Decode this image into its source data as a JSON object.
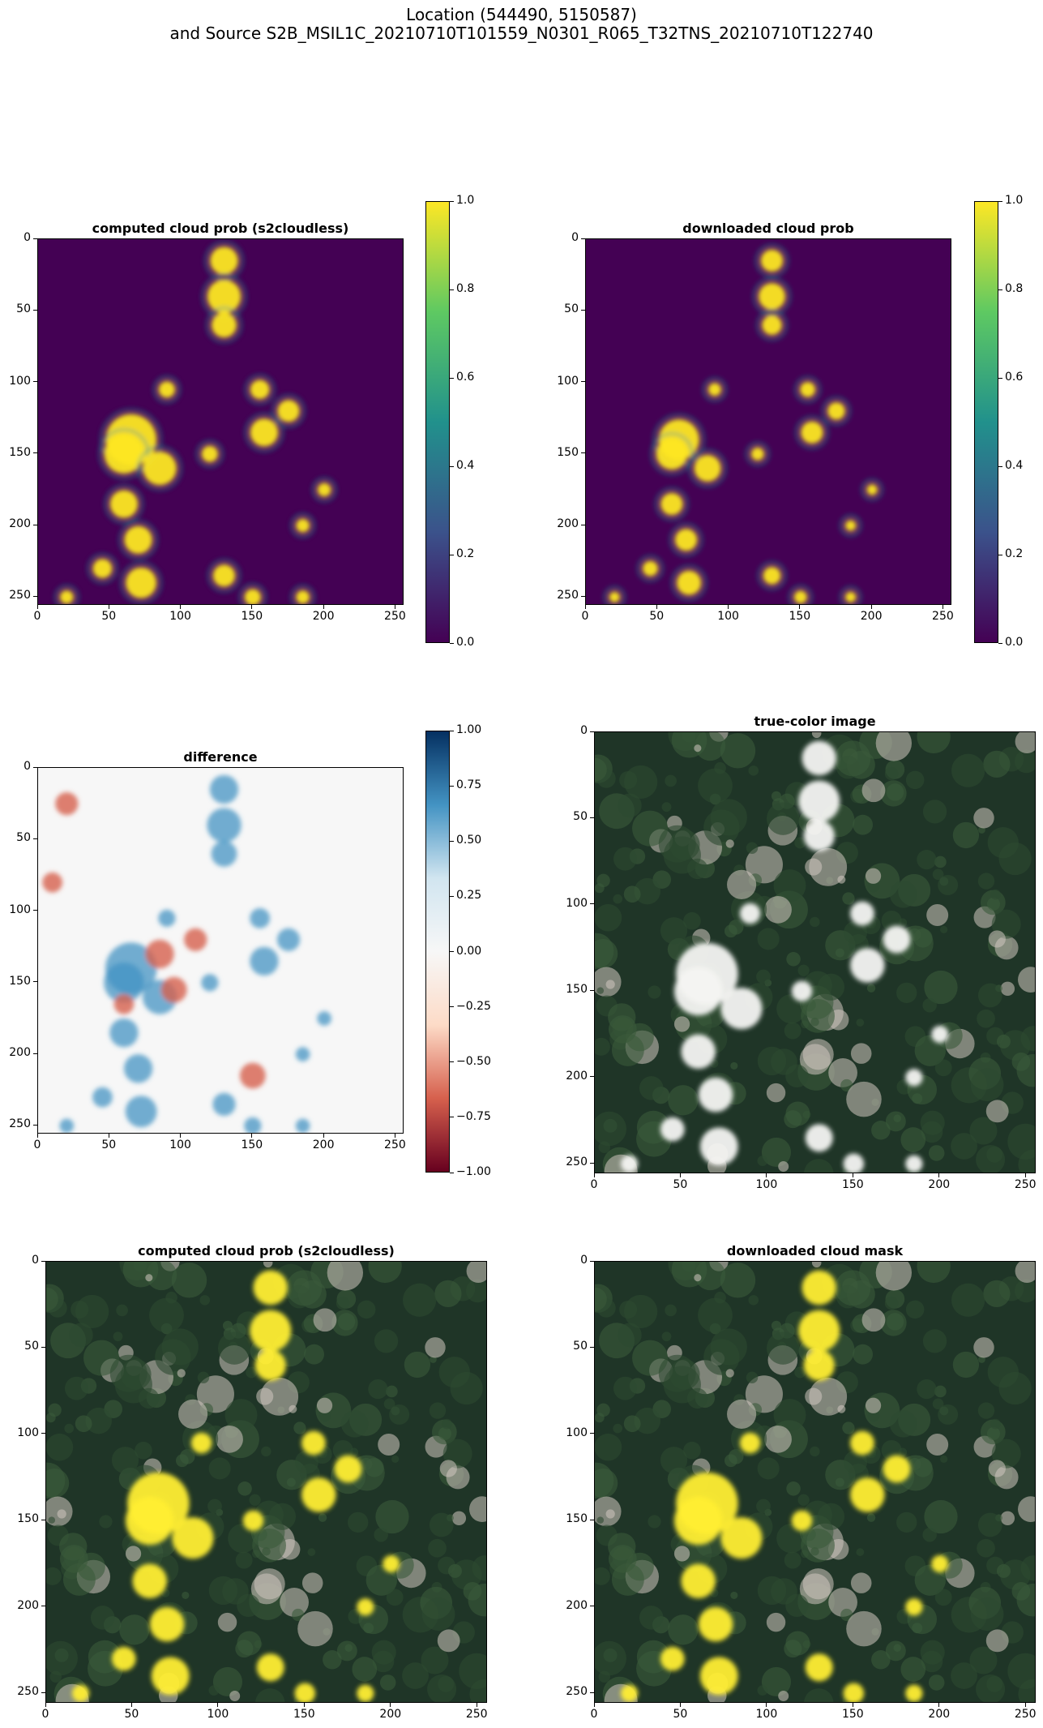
{
  "figure": {
    "title_line1": "Location (544490, 5150587)",
    "title_line2": "and Source S2B_MSIL1C_20210710T101559_N0301_R065_T32TNS_20210710T122740"
  },
  "colors": {
    "viridis": [
      "#440154",
      "#3b528b",
      "#21918c",
      "#5ec962",
      "#fde725"
    ],
    "rdbu": [
      "#67001f",
      "#d6604d",
      "#fddbc7",
      "#f7f7f7",
      "#d1e5f0",
      "#4393c3",
      "#053061"
    ],
    "cloud_overlay": "#ffee33",
    "terrain_dark": "#1f3527",
    "terrain_light": "#cfc7bf"
  },
  "chart_data": [
    {
      "type": "heatmap",
      "title": "computed cloud prob (s2cloudless)",
      "xlim": [
        0,
        256
      ],
      "ylim": [
        256,
        0
      ],
      "x_ticks": [
        0,
        50,
        100,
        150,
        200,
        250
      ],
      "y_ticks": [
        0,
        50,
        100,
        150,
        200,
        250
      ],
      "colormap": "viridis",
      "colorbar": {
        "range": [
          0.0,
          1.0
        ],
        "ticks": [
          "0.0",
          "0.2",
          "0.4",
          "0.6",
          "0.8",
          "1.0"
        ]
      }
    },
    {
      "type": "heatmap",
      "title": "downloaded cloud prob",
      "xlim": [
        0,
        256
      ],
      "ylim": [
        256,
        0
      ],
      "x_ticks": [
        0,
        50,
        100,
        150,
        200,
        250
      ],
      "y_ticks": [
        0,
        50,
        100,
        150,
        200,
        250
      ],
      "colormap": "viridis",
      "colorbar": {
        "range": [
          0.0,
          1.0
        ],
        "ticks": [
          "0.0",
          "0.2",
          "0.4",
          "0.6",
          "0.8",
          "1.0"
        ]
      }
    },
    {
      "type": "heatmap",
      "title": "difference",
      "xlim": [
        0,
        256
      ],
      "ylim": [
        256,
        0
      ],
      "x_ticks": [
        0,
        50,
        100,
        150,
        200,
        250
      ],
      "y_ticks": [
        0,
        50,
        100,
        150,
        200,
        250
      ],
      "colormap": "RdBu",
      "colorbar": {
        "range": [
          -1.0,
          1.0
        ],
        "ticks": [
          "−1.00",
          "−0.75",
          "−0.50",
          "−0.25",
          "0.00",
          "0.25",
          "0.50",
          "0.75",
          "1.00"
        ]
      }
    },
    {
      "type": "heatmap",
      "title": "true-color image",
      "xlim": [
        0,
        256
      ],
      "ylim": [
        256,
        0
      ],
      "x_ticks": [
        0,
        50,
        100,
        150,
        200,
        250
      ],
      "y_ticks": [
        0,
        50,
        100,
        150,
        200,
        250
      ]
    },
    {
      "type": "heatmap",
      "title": "computed cloud prob (s2cloudless)",
      "xlim": [
        0,
        256
      ],
      "ylim": [
        256,
        0
      ],
      "x_ticks": [
        0,
        50,
        100,
        150,
        200,
        250
      ],
      "y_ticks": [
        0,
        50,
        100,
        150,
        200,
        250
      ]
    },
    {
      "type": "heatmap",
      "title": "downloaded cloud mask",
      "xlim": [
        0,
        256
      ],
      "ylim": [
        256,
        0
      ],
      "x_ticks": [
        0,
        50,
        100,
        150,
        200,
        250
      ],
      "y_ticks": [
        0,
        50,
        100,
        150,
        200,
        250
      ]
    }
  ]
}
